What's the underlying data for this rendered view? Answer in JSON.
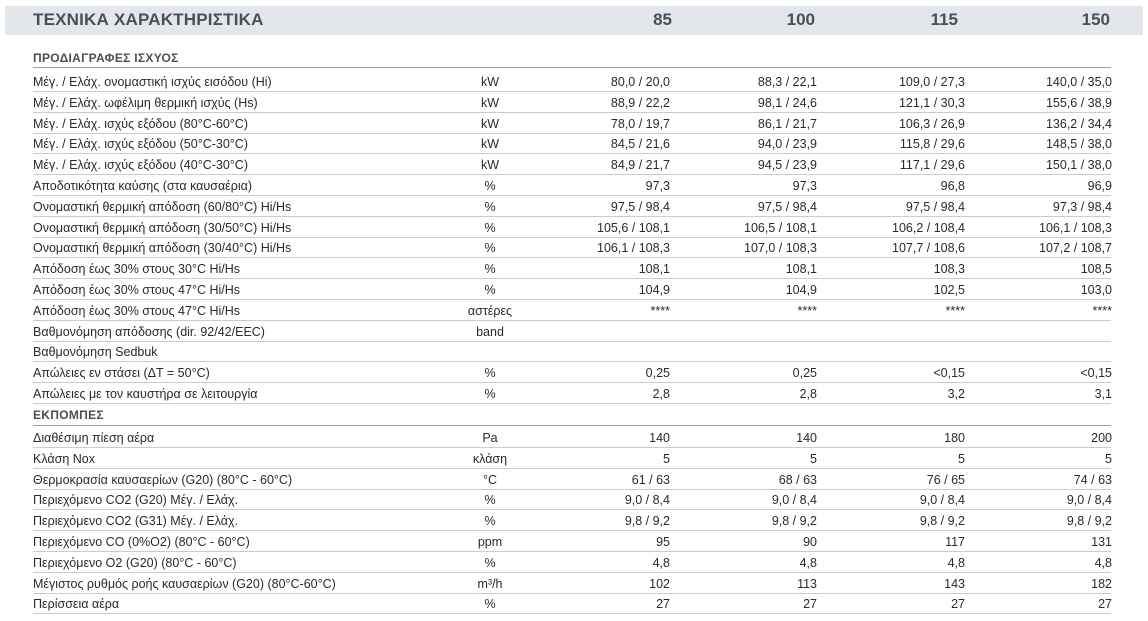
{
  "header": {
    "title": "ΤΕΧΝΙΚΑ ΧΑΡΑΚΤΗΡΙΣΤΙΚΑ",
    "columns": [
      "85",
      "100",
      "115",
      "150"
    ]
  },
  "sections": [
    {
      "title": "ΠΡΟΔΙΑΓΡΑΦΕΣ ΙΣΧΥΟΣ",
      "rows": [
        {
          "label": "Μέγ. / Ελάχ. ονομαστική ισχύς εισόδου (Hi)",
          "unit": "kW",
          "values": [
            "80,0 / 20,0",
            "88,3 / 22,1",
            "109,0 / 27,3",
            "140,0 / 35,0"
          ]
        },
        {
          "label": "Μέγ. / Ελάχ. ωφέλιμη θερμική ισχύς (Hs)",
          "unit": "kW",
          "values": [
            "88,9 / 22,2",
            "98,1 / 24,6",
            "121,1 / 30,3",
            "155,6 / 38,9"
          ]
        },
        {
          "label": "Μέγ. / Ελάχ. ισχύς εξόδου (80°C-60°C)",
          "unit": "kW",
          "values": [
            "78,0 / 19,7",
            "86,1 / 21,7",
            "106,3 / 26,9",
            "136,2 / 34,4"
          ]
        },
        {
          "label": "Μέγ. / Ελάχ. ισχύς εξόδου (50°C-30°C)",
          "unit": "kW",
          "values": [
            "84,5 / 21,6",
            "94,0 / 23,9",
            "115,8 / 29,6",
            "148,5 / 38,0"
          ]
        },
        {
          "label": "Μέγ. / Ελάχ. ισχύς εξόδου (40°C-30°C)",
          "unit": "kW",
          "values": [
            "84,9 / 21,7",
            "94,5 / 23,9",
            "117,1 / 29,6",
            "150,1 / 38,0"
          ]
        },
        {
          "label": "Αποδοτικότητα καύσης (στα καυσαέρια)",
          "unit": "%",
          "values": [
            "97,3",
            "97,3",
            "96,8",
            "96,9"
          ]
        },
        {
          "label": "Ονομαστική θερμική απόδοση (60/80°C) Hi/Hs",
          "unit": "%",
          "values": [
            "97,5 / 98,4",
            "97,5 / 98,4",
            "97,5 / 98,4",
            "97,3 / 98,4"
          ]
        },
        {
          "label": "Ονομαστική θερμική απόδοση (30/50°C) Hi/Hs",
          "unit": "%",
          "values": [
            "105,6 / 108,1",
            "106,5 / 108,1",
            "106,2 / 108,4",
            "106,1 / 108,3"
          ]
        },
        {
          "label": "Ονομαστική θερμική απόδοση (30/40°C) Hi/Hs",
          "unit": "%",
          "values": [
            "106,1 / 108,3",
            "107,0 / 108,3",
            "107,7 / 108,6",
            "107,2 / 108,7"
          ]
        },
        {
          "label": "Απόδοση έως 30% στους 30°C Hi/Hs",
          "unit": "%",
          "values": [
            "108,1",
            "108,1",
            "108,3",
            "108,5"
          ]
        },
        {
          "label": "Απόδοση έως 30% στους 47°C Hi/Hs",
          "unit": "%",
          "values": [
            "104,9",
            "104,9",
            "102,5",
            "103,0"
          ]
        },
        {
          "label": "Απόδοση έως 30% στους 47°C Hi/Hs",
          "unit": "αστέρες",
          "values": [
            "****",
            "****",
            "****",
            "****"
          ]
        },
        {
          "label": "Βαθμονόμηση απόδοσης (dir. 92/42/EEC)",
          "unit": "band",
          "values": [
            "",
            "",
            "",
            ""
          ]
        },
        {
          "label": "Βαθμονόμηση Sedbuk",
          "unit": "",
          "values": [
            "",
            "",
            "",
            ""
          ]
        },
        {
          "label": "Απώλειες εν στάσει (ΔT = 50°C)",
          "unit": "%",
          "values": [
            "0,25",
            "0,25",
            "<0,15",
            "<0,15"
          ]
        },
        {
          "label": "Απώλειες με τον καυστήρα σε λειτουργία",
          "unit": "%",
          "values": [
            "2,8",
            "2,8",
            "3,2",
            "3,1"
          ]
        }
      ]
    },
    {
      "title": "ΕΚΠΟΜΠΕΣ",
      "rows": [
        {
          "label": "Διαθέσιμη πίεση αέρα",
          "unit": "Pa",
          "values": [
            "140",
            "140",
            "180",
            "200"
          ]
        },
        {
          "label": "Κλάση Nox",
          "unit": "κλάση",
          "values": [
            "5",
            "5",
            "5",
            "5"
          ]
        },
        {
          "label": "Θερμοκρασία καυσαερίων (G20) (80°C - 60°C)",
          "unit": "°C",
          "values": [
            "61 / 63",
            "68 / 63",
            "76 / 65",
            "74 / 63"
          ]
        },
        {
          "label": "Περιεχόμενο CO2 (G20) Μέγ. / Ελάχ.",
          "unit": "%",
          "values": [
            "9,0 / 8,4",
            "9,0 / 8,4",
            "9,0 / 8,4",
            "9,0 / 8,4"
          ]
        },
        {
          "label": "Περιεχόμενο CO2 (G31) Μέγ. / Ελάχ.",
          "unit": "%",
          "values": [
            "9,8 / 9,2",
            "9,8 / 9,2",
            "9,8 / 9,2",
            "9,8 / 9,2"
          ]
        },
        {
          "label": "Περιεχόμενο CO (0%O2) (80°C - 60°C)",
          "unit": "ppm",
          "values": [
            "95",
            "90",
            "117",
            "131"
          ]
        },
        {
          "label": "Περιεχόμενο O2 (G20) (80°C - 60°C)",
          "unit": "%",
          "values": [
            "4,8",
            "4,8",
            "4,8",
            "4,8"
          ]
        },
        {
          "label": "Μέγιστος ρυθμός ροής καυσαερίων (G20) (80°C-60°C)",
          "unit": "m³/h",
          "values": [
            "102",
            "113",
            "143",
            "182"
          ]
        },
        {
          "label": "Περίσσεια αέρα",
          "unit": "%",
          "values": [
            "27",
            "27",
            "27",
            "27"
          ]
        }
      ]
    }
  ]
}
